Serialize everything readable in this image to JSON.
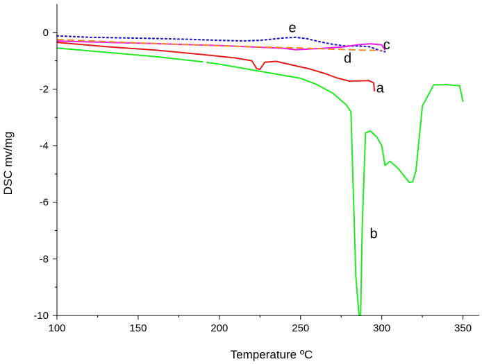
{
  "chart_data": {
    "type": "line",
    "title": "",
    "xlabel": "Temperature ºC",
    "ylabel": "DSC mv/mg",
    "xlim": [
      100,
      360
    ],
    "ylim": [
      -10,
      1
    ],
    "xticks": [
      100,
      150,
      200,
      250,
      300,
      350
    ],
    "yticks": [
      0,
      -2,
      -4,
      -6,
      -8,
      -10
    ],
    "xtick_labels": [
      "100",
      "150",
      "200",
      "250",
      "300",
      "350"
    ],
    "ytick_labels": [
      "0",
      "-2",
      "-4",
      "-6",
      "-8",
      "-10"
    ],
    "grid": false,
    "series": [
      {
        "name": "e",
        "label": "e",
        "color": "#1f1fd6",
        "style": "dotted",
        "x": [
          100,
          120,
          150,
          180,
          200,
          215,
          225,
          232,
          240,
          247,
          254,
          262,
          270,
          278,
          285,
          292,
          298,
          302
        ],
        "y": [
          -0.12,
          -0.17,
          -0.2,
          -0.24,
          -0.28,
          -0.3,
          -0.28,
          -0.24,
          -0.19,
          -0.17,
          -0.22,
          -0.33,
          -0.42,
          -0.48,
          -0.48,
          -0.5,
          -0.62,
          -0.68
        ],
        "label_at": [
          245,
          0.18
        ]
      },
      {
        "name": "c",
        "label": "c",
        "color": "#e81ce8",
        "style": "solid",
        "x": [
          100,
          150,
          200,
          240,
          247,
          260,
          275,
          285,
          293,
          300,
          302
        ],
        "y": [
          -0.3,
          -0.38,
          -0.46,
          -0.56,
          -0.61,
          -0.57,
          -0.52,
          -0.44,
          -0.4,
          -0.44,
          -0.62
        ],
        "label_at": [
          303,
          -0.42
        ]
      },
      {
        "name": "d",
        "label": "d",
        "color": "#f08a28",
        "style": "dashed",
        "x": [
          100,
          150,
          200,
          250,
          275,
          290,
          300
        ],
        "y": [
          -0.25,
          -0.37,
          -0.47,
          -0.55,
          -0.6,
          -0.63,
          -0.63
        ],
        "label_at": [
          279,
          -0.9
        ]
      },
      {
        "name": "a",
        "label": "a",
        "color": "#e01b1b",
        "style": "solid",
        "x": [
          100,
          130,
          160,
          190,
          210,
          220,
          223,
          225,
          228,
          235,
          255,
          265,
          272,
          280,
          292,
          295,
          295.5
        ],
        "y": [
          -0.35,
          -0.5,
          -0.62,
          -0.78,
          -0.9,
          -1.0,
          -1.28,
          -1.3,
          -1.05,
          -1.02,
          -1.28,
          -1.45,
          -1.6,
          -1.72,
          -1.7,
          -1.78,
          -2.08
        ],
        "label_at": [
          299,
          -1.95
        ]
      },
      {
        "name": "b",
        "label": "b",
        "color": "#22e822",
        "style": "solid",
        "x": [
          100,
          130,
          160,
          190,
          200,
          240,
          250,
          260,
          270,
          278,
          281,
          284,
          286,
          287,
          288,
          290,
          293,
          297,
          300,
          302,
          305,
          310,
          317,
          319,
          321,
          325,
          332,
          340,
          348,
          350
        ],
        "y": [
          -0.55,
          -0.7,
          -0.85,
          -1.04,
          -1.12,
          -1.52,
          -1.62,
          -1.84,
          -2.15,
          -2.55,
          -2.8,
          -8.6,
          -10,
          -10,
          -6.8,
          -3.55,
          -3.48,
          -3.7,
          -4.0,
          -4.7,
          -4.55,
          -4.8,
          -5.3,
          -5.28,
          -4.9,
          -2.6,
          -1.85,
          -1.85,
          -1.88,
          -2.45
        ],
        "gap_at": [
          190,
          192
        ],
        "label_at": [
          295,
          -7.1
        ]
      }
    ]
  }
}
